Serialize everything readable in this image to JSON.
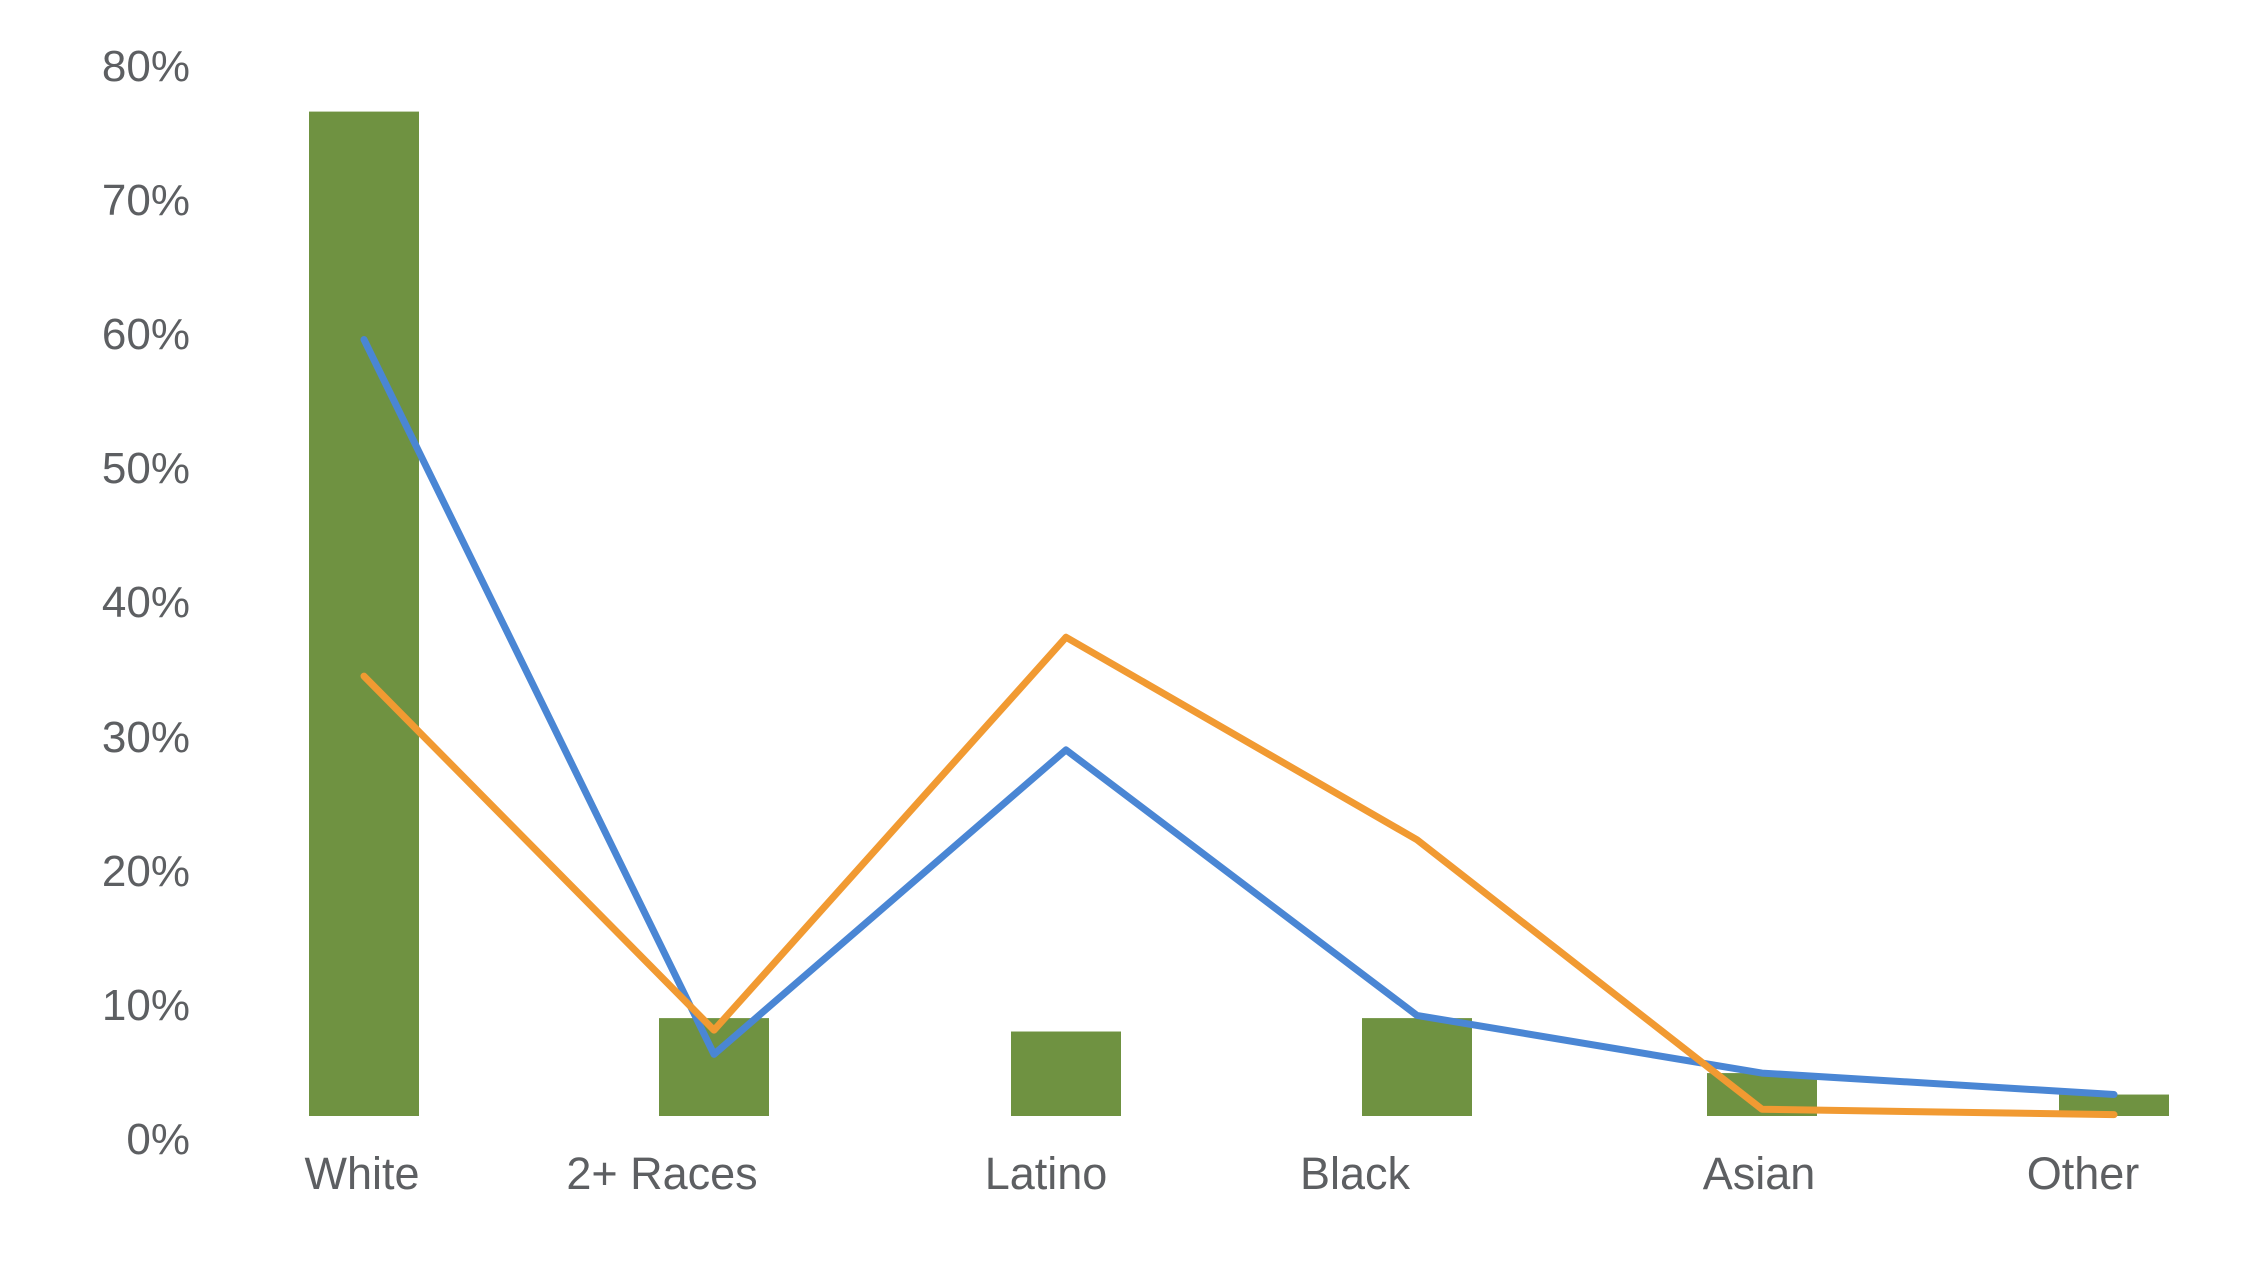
{
  "chart_data": {
    "type": "bar",
    "subtype": "bar-and-line-combo",
    "title": "",
    "xlabel": "",
    "ylabel": "",
    "categories": [
      "White",
      "2+ Races",
      "Latino",
      "Black",
      "Asian",
      "Other"
    ],
    "series": [
      {
        "name": "green-bars",
        "kind": "bar",
        "color": "#6f9241",
        "values": [
          74.9,
          7.3,
          6.3,
          7.3,
          3.2,
          1.6
        ]
      },
      {
        "name": "blue-line",
        "kind": "line",
        "color": "#4a86d4",
        "values": [
          57.9,
          4.6,
          27.3,
          7.5,
          3.2,
          1.6
        ]
      },
      {
        "name": "orange-line",
        "kind": "line",
        "color": "#f19a32",
        "values": [
          32.8,
          6.4,
          35.7,
          20.6,
          0.5,
          0.1
        ]
      }
    ],
    "ylim": [
      0,
      80
    ],
    "y_ticks": [
      "80%",
      "70%",
      "60%",
      "50%",
      "40%",
      "30%",
      "20%",
      "10%",
      "0%"
    ],
    "y_tick_values": [
      80,
      70,
      60,
      50,
      40,
      30,
      20,
      10,
      0
    ],
    "grid": false,
    "legend": false
  },
  "colors": {
    "bar_green": "#6f9241",
    "line_blue": "#4a86d4",
    "line_orange": "#f19a32",
    "axis_text": "#5d5f62",
    "background": "#ffffff"
  }
}
